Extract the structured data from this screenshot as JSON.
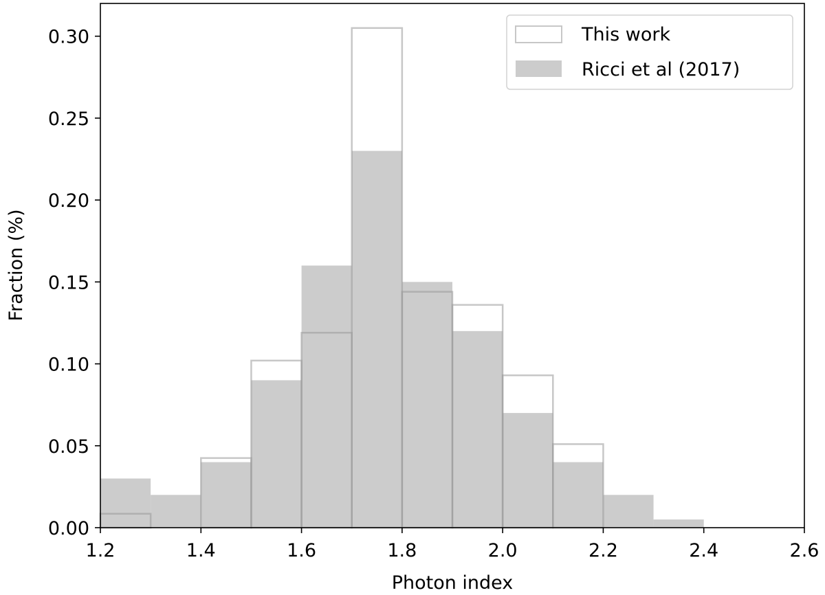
{
  "chart_data": {
    "type": "bar",
    "xlabel": "Photon index",
    "ylabel": "Fraction (%)",
    "xlim": [
      1.2,
      2.6
    ],
    "ylim": [
      0.0,
      0.32
    ],
    "x_ticks": [
      "1.2",
      "1.4",
      "1.6",
      "1.8",
      "2.0",
      "2.2",
      "2.4",
      "2.6"
    ],
    "y_ticks": [
      "0.00",
      "0.05",
      "0.10",
      "0.15",
      "0.20",
      "0.25",
      "0.30"
    ],
    "bin_edges": [
      1.2,
      1.3,
      1.4,
      1.5,
      1.6,
      1.7,
      1.8,
      1.9,
      2.0,
      2.1,
      2.2,
      2.3,
      2.4
    ],
    "grid": false,
    "legend_position": "top-right",
    "series": [
      {
        "name": "Ricci et al (2017)",
        "style": "filled",
        "color": "#cccccc",
        "values": [
          0.03,
          0.02,
          0.04,
          0.09,
          0.16,
          0.23,
          0.15,
          0.12,
          0.07,
          0.04,
          0.02,
          0.005
        ]
      },
      {
        "name": "This work",
        "style": "outline",
        "color": "#999999",
        "values": [
          0.0085,
          0.0,
          0.0425,
          0.102,
          0.119,
          0.305,
          0.144,
          0.136,
          0.093,
          0.051,
          0.0,
          0.0
        ]
      }
    ]
  }
}
